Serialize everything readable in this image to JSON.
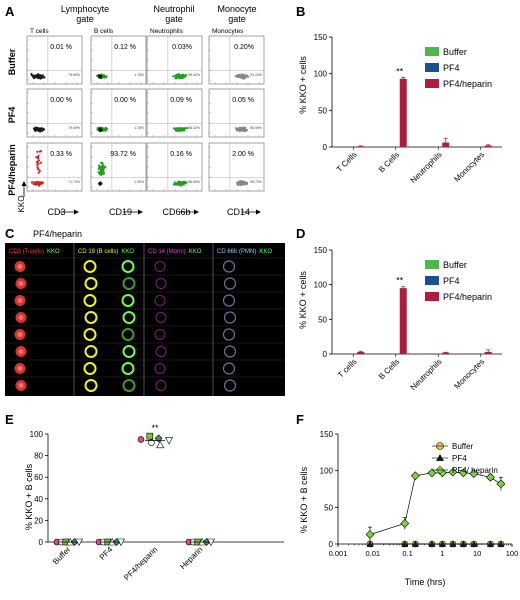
{
  "panel_letters": [
    "A",
    "B",
    "C",
    "D",
    "E",
    "F"
  ],
  "panel_a": {
    "col_titles": [
      [
        "Lymphocyte",
        "gate"
      ],
      [
        "Neutrophil",
        "gate"
      ],
      [
        "Monocyte",
        "gate"
      ]
    ],
    "subset_labels": [
      "T cells",
      "B cells",
      "Neutrophils",
      "Monocytes"
    ],
    "row_labels": [
      "Buffer",
      "PF4",
      "PF4/heparin"
    ],
    "y_axis_label": "KKO",
    "x_axis_labels": [
      "CD3",
      "CD19",
      "CD66b",
      "CD14"
    ],
    "percentages": [
      [
        "0.01 %",
        "0.12 %",
        "0.03%",
        "0.20%"
      ],
      [
        "0.00 %",
        "0.00 %",
        "0.09 %",
        "0.05 %"
      ],
      [
        "0.33 %",
        "93.72 %",
        "0.16 %",
        "2.00 %"
      ]
    ],
    "dot_colors": [
      "#d42020",
      "#1a1a1a",
      "#22a022",
      "#888888"
    ],
    "lower_right_pct": [
      [
        "75.59%",
        "1.78%",
        "98.42%",
        "91.15%"
      ],
      [
        "79.69%",
        "1.78%",
        "98.42%",
        "98.95%"
      ],
      [
        "71.74%",
        "1.99%",
        "98.69%",
        "98.70%"
      ]
    ]
  },
  "panel_c": {
    "title": "PF4/heparin",
    "headers": [
      {
        "main": "CD3 (T-cells)",
        "kko": "KKO",
        "color": "#ff3b3b"
      },
      {
        "main": "CD 19 (B cells)",
        "kko": "KKO",
        "color": "#f2f21c"
      },
      {
        "main": "CD 14 (Mono)",
        "kko": "KKO",
        "color": "#e040e0"
      },
      {
        "main": "CD 66b (PMN)",
        "kko": "KKO",
        "color": "#9ec8ff"
      }
    ],
    "kko_color": "#6dff4a"
  },
  "legend": [
    {
      "label": "Buffer",
      "color": "#4cb848"
    },
    {
      "label": "PF4",
      "color": "#1c4f8f"
    },
    {
      "label": "PF4/heparin",
      "color": "#b01c3c"
    }
  ],
  "chart_data": [
    {
      "panel": "B",
      "type": "bar",
      "categories": [
        "T Cells",
        "B Cells",
        "Neutrophils",
        "Monocytes"
      ],
      "series": [
        {
          "name": "Buffer",
          "values": [
            0,
            0,
            0,
            0
          ],
          "errors": [
            0,
            0,
            0,
            0
          ]
        },
        {
          "name": "PF4",
          "values": [
            0,
            0,
            0,
            0
          ],
          "errors": [
            0,
            0,
            0,
            0
          ]
        },
        {
          "name": "PF4/heparin",
          "values": [
            1,
            93,
            6,
            2
          ],
          "errors": [
            0.5,
            2,
            6,
            1
          ]
        }
      ],
      "ylabel": "% KKO + cells",
      "ylim": [
        0,
        150
      ],
      "yticks": [
        0,
        50,
        100,
        150
      ],
      "annotation": {
        "category": "B Cells",
        "text": "**"
      }
    },
    {
      "panel": "D",
      "type": "bar",
      "categories": [
        "T cells",
        "B Cells",
        "Neutrophils",
        "Monocytes"
      ],
      "series": [
        {
          "name": "Buffer",
          "values": [
            0,
            0,
            0,
            0
          ],
          "errors": [
            0,
            0,
            0,
            0
          ]
        },
        {
          "name": "PF4",
          "values": [
            0,
            0,
            0,
            0
          ],
          "errors": [
            0,
            0,
            0,
            0
          ]
        },
        {
          "name": "PF4/heparin",
          "values": [
            3,
            95,
            2,
            3
          ],
          "errors": [
            1,
            2,
            0.5,
            3
          ]
        }
      ],
      "ylabel": "% KKO + cells",
      "ylim": [
        0,
        150
      ],
      "yticks": [
        0,
        50,
        100,
        150
      ],
      "annotation": {
        "category": "B Cells",
        "text": "**"
      }
    },
    {
      "panel": "E",
      "type": "scatter",
      "categories": [
        "Buffer",
        "PF4",
        "PF4/heparin",
        "Heparin"
      ],
      "values": [
        [
          0,
          0,
          0,
          0,
          0,
          0
        ],
        [
          0,
          0,
          0,
          0,
          0,
          0
        ],
        [
          95,
          92,
          98,
          90,
          96,
          94
        ],
        [
          0,
          0,
          0,
          0,
          0,
          0
        ]
      ],
      "means": [
        0,
        0,
        94,
        0
      ],
      "ylabel": "% KKO + B cells",
      "ylim": [
        0,
        100
      ],
      "yticks": [
        0,
        20,
        40,
        60,
        80,
        100
      ],
      "annotation": {
        "category": "PF4/heparin",
        "text": "**"
      }
    },
    {
      "panel": "F",
      "type": "line",
      "x_scale": "log",
      "series": [
        {
          "name": "Buffer",
          "x": [
            0.0083,
            0.083,
            0.167,
            0.5,
            1,
            2,
            4,
            8,
            24,
            48
          ],
          "y": [
            0,
            0,
            0,
            0,
            0,
            0,
            0,
            0,
            0,
            0
          ]
        },
        {
          "name": "PF4",
          "x": [
            0.0083,
            0.083,
            0.167,
            0.5,
            1,
            2,
            4,
            8,
            24,
            48
          ],
          "y": [
            0,
            0,
            0,
            0,
            0,
            0,
            0,
            0,
            0,
            0
          ]
        },
        {
          "name": "PF4/ heparin",
          "x": [
            0.0083,
            0.083,
            0.167,
            0.5,
            1,
            2,
            4,
            8,
            24,
            48
          ],
          "y": [
            13,
            28,
            93,
            97,
            97,
            98,
            97,
            96,
            91,
            82
          ],
          "errors": [
            10,
            8,
            3,
            2,
            2,
            2,
            2,
            2,
            4,
            9
          ]
        }
      ],
      "xlabel": "Time (hrs)",
      "ylabel": "% KKO + B cells",
      "ylim": [
        0,
        150
      ],
      "yticks": [
        0,
        50,
        100,
        150
      ],
      "xticks": [
        "0.001",
        "0.01",
        "0.1",
        "1",
        "10",
        "100"
      ],
      "legend_colors": [
        "#f5c542",
        "#1a1a1a",
        "#7ad63a"
      ]
    }
  ]
}
